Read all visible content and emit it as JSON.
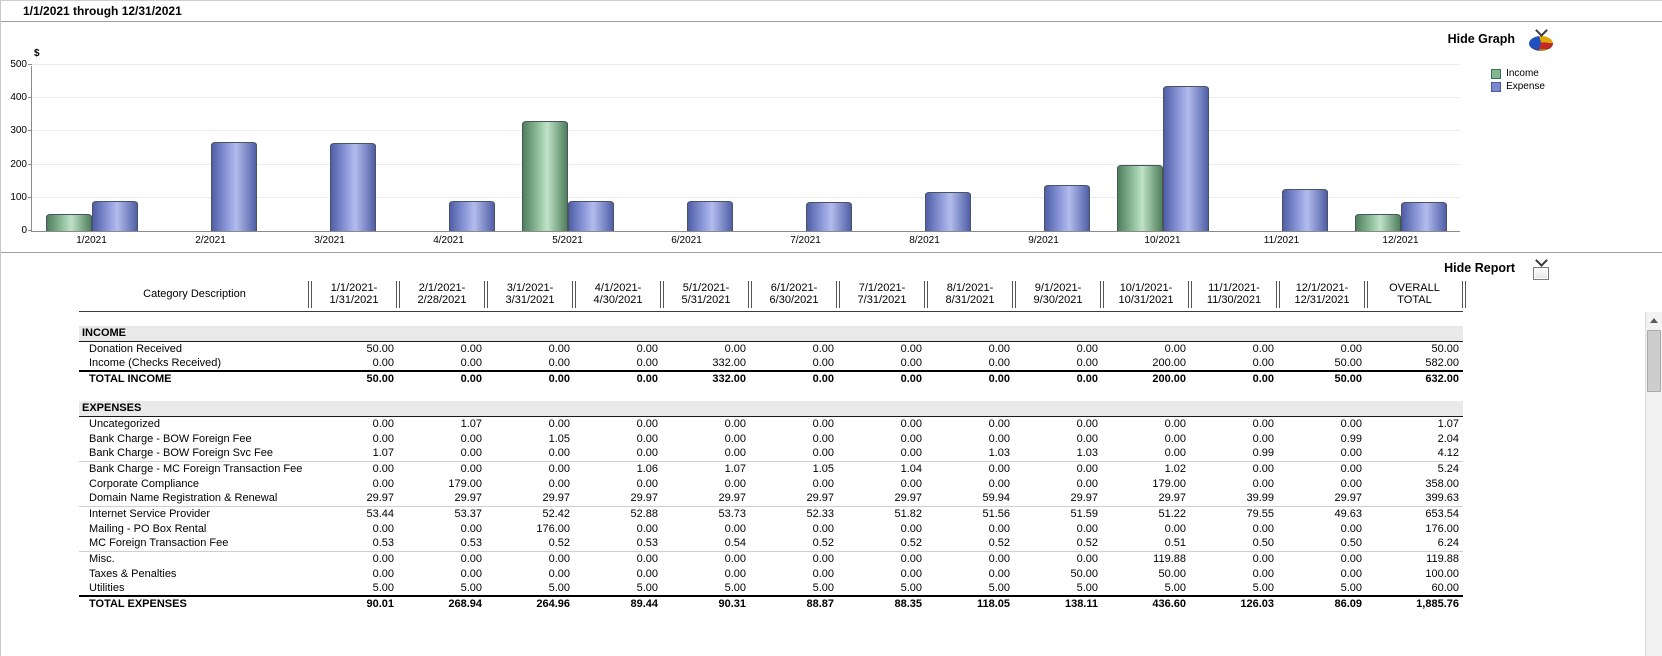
{
  "title_bar": {
    "title": "1/1/2021 through 12/31/2021"
  },
  "graph_panel": {
    "hide_graph_label": "Hide Graph",
    "y_axis_label": "$",
    "legend": [
      {
        "label": "Income",
        "color": "#84b894",
        "border": "#3f7050"
      },
      {
        "label": "Expense",
        "color": "#7d88cf",
        "border": "#4a55a0"
      }
    ]
  },
  "icons": {
    "hide_graph_icon": "pie-chart-with-collapse-chevron",
    "hide_report_icon": "report-sheet-with-collapse-chevron",
    "scroll_up_icon": "triangle-up"
  },
  "chart_data": {
    "type": "bar",
    "title": "",
    "xlabel": "",
    "ylabel": "$",
    "ylim": [
      0,
      500
    ],
    "yticks": [
      0,
      100,
      200,
      300,
      400,
      500
    ],
    "grid": true,
    "legend_position": "top-right",
    "categories": [
      "1/2021",
      "2/2021",
      "3/2021",
      "4/2021",
      "5/2021",
      "6/2021",
      "7/2021",
      "8/2021",
      "9/2021",
      "10/2021",
      "11/2021",
      "12/2021"
    ],
    "series": [
      {
        "name": "Income",
        "color": "#84b894",
        "values": [
          50,
          0,
          0,
          0,
          332,
          0,
          0,
          0,
          0,
          200,
          0,
          50
        ]
      },
      {
        "name": "Expense",
        "color": "#7d88cf",
        "values": [
          90.01,
          268.94,
          264.96,
          89.44,
          90.31,
          88.87,
          88.35,
          118.05,
          138.11,
          436.6,
          126.03,
          86.09
        ]
      }
    ]
  },
  "report_panel": {
    "hide_report_label": "Hide Report",
    "category_column_header": "Category Description"
  },
  "report": {
    "columns": [
      [
        "1/1/2021-",
        "1/31/2021"
      ],
      [
        "2/1/2021-",
        "2/28/2021"
      ],
      [
        "3/1/2021-",
        "3/31/2021"
      ],
      [
        "4/1/2021-",
        "4/30/2021"
      ],
      [
        "5/1/2021-",
        "5/31/2021"
      ],
      [
        "6/1/2021-",
        "6/30/2021"
      ],
      [
        "7/1/2021-",
        "7/31/2021"
      ],
      [
        "8/1/2021-",
        "8/31/2021"
      ],
      [
        "9/1/2021-",
        "9/30/2021"
      ],
      [
        "10/1/2021-",
        "10/31/2021"
      ],
      [
        "11/1/2021-",
        "11/30/2021"
      ],
      [
        "12/1/2021-",
        "12/31/2021"
      ],
      [
        "OVERALL",
        "TOTAL"
      ]
    ],
    "sections": [
      {
        "name": "INCOME",
        "rows": [
          {
            "label": "Donation Received",
            "values": [
              "50.00",
              "0.00",
              "0.00",
              "0.00",
              "0.00",
              "0.00",
              "0.00",
              "0.00",
              "0.00",
              "0.00",
              "0.00",
              "0.00",
              "50.00"
            ]
          },
          {
            "label": "Income (Checks Received)",
            "values": [
              "0.00",
              "0.00",
              "0.00",
              "0.00",
              "332.00",
              "0.00",
              "0.00",
              "0.00",
              "0.00",
              "200.00",
              "0.00",
              "50.00",
              "582.00"
            ]
          }
        ],
        "total": {
          "label": "TOTAL INCOME",
          "values": [
            "50.00",
            "0.00",
            "0.00",
            "0.00",
            "332.00",
            "0.00",
            "0.00",
            "0.00",
            "0.00",
            "200.00",
            "0.00",
            "50.00",
            "632.00"
          ]
        }
      },
      {
        "name": "EXPENSES",
        "rows": [
          {
            "label": "Uncategorized",
            "values": [
              "0.00",
              "1.07",
              "0.00",
              "0.00",
              "0.00",
              "0.00",
              "0.00",
              "0.00",
              "0.00",
              "0.00",
              "0.00",
              "0.00",
              "1.07"
            ]
          },
          {
            "label": "Bank Charge - BOW Foreign Fee",
            "values": [
              "0.00",
              "0.00",
              "1.05",
              "0.00",
              "0.00",
              "0.00",
              "0.00",
              "0.00",
              "0.00",
              "0.00",
              "0.00",
              "0.99",
              "2.04"
            ]
          },
          {
            "label": "Bank Charge - BOW Foreign Svc Fee",
            "values": [
              "1.07",
              "0.00",
              "0.00",
              "0.00",
              "0.00",
              "0.00",
              "0.00",
              "1.03",
              "1.03",
              "0.00",
              "0.99",
              "0.00",
              "4.12"
            ]
          },
          {
            "label": "Bank Charge - MC Foreign Transaction Fee",
            "values": [
              "0.00",
              "0.00",
              "0.00",
              "1.06",
              "1.07",
              "1.05",
              "1.04",
              "0.00",
              "0.00",
              "1.02",
              "0.00",
              "0.00",
              "5.24"
            ]
          },
          {
            "label": "Corporate Compliance",
            "values": [
              "0.00",
              "179.00",
              "0.00",
              "0.00",
              "0.00",
              "0.00",
              "0.00",
              "0.00",
              "0.00",
              "179.00",
              "0.00",
              "0.00",
              "358.00"
            ]
          },
          {
            "label": "Domain Name Registration & Renewal",
            "values": [
              "29.97",
              "29.97",
              "29.97",
              "29.97",
              "29.97",
              "29.97",
              "29.97",
              "59.94",
              "29.97",
              "29.97",
              "39.99",
              "29.97",
              "399.63"
            ]
          },
          {
            "label": "Internet Service Provider",
            "values": [
              "53.44",
              "53.37",
              "52.42",
              "52.88",
              "53.73",
              "52.33",
              "51.82",
              "51.56",
              "51.59",
              "51.22",
              "79.55",
              "49.63",
              "653.54"
            ]
          },
          {
            "label": "Mailing - PO Box Rental",
            "values": [
              "0.00",
              "0.00",
              "176.00",
              "0.00",
              "0.00",
              "0.00",
              "0.00",
              "0.00",
              "0.00",
              "0.00",
              "0.00",
              "0.00",
              "176.00"
            ]
          },
          {
            "label": "MC Foreign Transaction Fee",
            "values": [
              "0.53",
              "0.53",
              "0.52",
              "0.53",
              "0.54",
              "0.52",
              "0.52",
              "0.52",
              "0.52",
              "0.51",
              "0.50",
              "0.50",
              "6.24"
            ]
          },
          {
            "label": "Misc.",
            "values": [
              "0.00",
              "0.00",
              "0.00",
              "0.00",
              "0.00",
              "0.00",
              "0.00",
              "0.00",
              "0.00",
              "119.88",
              "0.00",
              "0.00",
              "119.88"
            ]
          },
          {
            "label": "Taxes & Penalties",
            "values": [
              "0.00",
              "0.00",
              "0.00",
              "0.00",
              "0.00",
              "0.00",
              "0.00",
              "0.00",
              "50.00",
              "50.00",
              "0.00",
              "0.00",
              "100.00"
            ]
          },
          {
            "label": "Utilities",
            "values": [
              "5.00",
              "5.00",
              "5.00",
              "5.00",
              "5.00",
              "5.00",
              "5.00",
              "5.00",
              "5.00",
              "5.00",
              "5.00",
              "5.00",
              "60.00"
            ]
          }
        ],
        "total": {
          "label": "TOTAL EXPENSES",
          "values": [
            "90.01",
            "268.94",
            "264.96",
            "89.44",
            "90.31",
            "88.87",
            "88.35",
            "118.05",
            "138.11",
            "436.60",
            "126.03",
            "86.09",
            "1,885.76"
          ]
        }
      }
    ]
  }
}
